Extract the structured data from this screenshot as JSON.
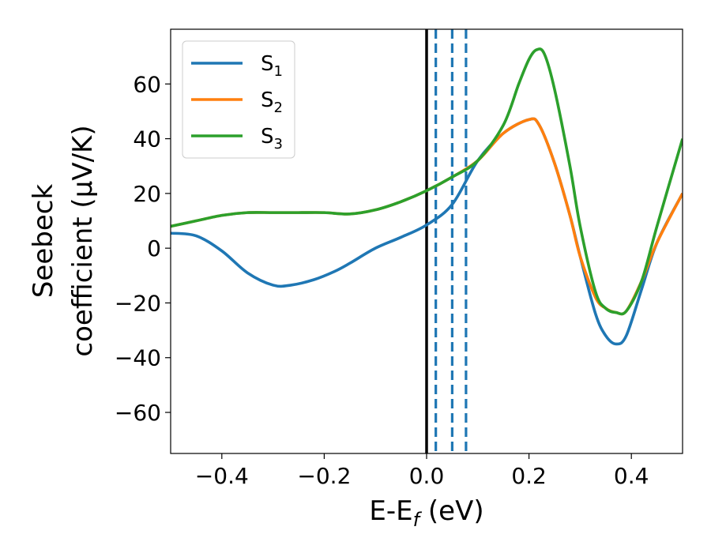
{
  "chart_data": {
    "type": "line",
    "xlabel": {
      "main": "E-E",
      "sub": "f",
      "tail": " (eV)"
    },
    "ylabel": {
      "line1": "Seebeck",
      "line2": "coefficient  (μV/K)"
    },
    "xlim": [
      -0.5,
      0.5
    ],
    "ylim": [
      -75,
      80
    ],
    "xticks": [
      -0.4,
      -0.2,
      0.0,
      0.2,
      0.4
    ],
    "xtick_labels": [
      "−0.4",
      "−0.2",
      "0.0",
      "0.2",
      "0.4"
    ],
    "yticks": [
      -60,
      -40,
      -20,
      0,
      20,
      40,
      60
    ],
    "ytick_labels": [
      "−60",
      "−40",
      "−20",
      "0",
      "20",
      "40",
      "60"
    ],
    "legend_position": "top-left",
    "vlines": [
      {
        "x": 0.0,
        "style": "solid",
        "color": "#000000"
      },
      {
        "x": 0.018,
        "style": "dashed",
        "color": "#1f77b4"
      },
      {
        "x": 0.05,
        "style": "dashed",
        "color": "#1f77b4"
      },
      {
        "x": 0.077,
        "style": "dashed",
        "color": "#1f77b4"
      }
    ],
    "series": [
      {
        "name": "S",
        "sub": "1",
        "color": "#1f77b4",
        "x": [
          -0.5,
          -0.45,
          -0.4,
          -0.35,
          -0.3,
          -0.265,
          -0.22,
          -0.18,
          -0.15,
          -0.1,
          -0.05,
          0.0,
          0.05,
          0.1,
          0.15,
          0.2,
          0.22,
          0.25,
          0.28,
          0.3,
          0.33,
          0.35,
          0.37,
          0.39,
          0.42,
          0.45,
          0.5
        ],
        "values": [
          5.5,
          4.5,
          -1,
          -9,
          -13.5,
          -13.5,
          -11.5,
          -8.5,
          -5.5,
          0,
          4,
          8.5,
          16,
          32,
          42,
          47,
          45,
          31,
          12,
          -3,
          -24,
          -32,
          -35,
          -32,
          -15,
          2,
          20
        ]
      },
      {
        "name": "S",
        "sub": "2",
        "color": "#ff7f0e",
        "x": [
          -0.5,
          -0.45,
          -0.4,
          -0.35,
          -0.3,
          -0.25,
          -0.2,
          -0.15,
          -0.1,
          -0.05,
          0.0,
          0.05,
          0.1,
          0.15,
          0.2,
          0.22,
          0.25,
          0.28,
          0.3,
          0.33,
          0.35,
          0.37,
          0.39,
          0.42,
          0.45,
          0.5
        ],
        "values": [
          8,
          10,
          12,
          13,
          13,
          13,
          13,
          12.5,
          14,
          17,
          21,
          26,
          32,
          42,
          47,
          45,
          31,
          12,
          -3,
          -18,
          -22,
          -23.5,
          -23,
          -12,
          2,
          20
        ]
      },
      {
        "name": "S",
        "sub": "3",
        "color": "#2ca02c",
        "x": [
          -0.5,
          -0.45,
          -0.4,
          -0.35,
          -0.3,
          -0.25,
          -0.2,
          -0.15,
          -0.1,
          -0.05,
          0.0,
          0.05,
          0.1,
          0.15,
          0.18,
          0.2,
          0.215,
          0.23,
          0.25,
          0.28,
          0.3,
          0.33,
          0.35,
          0.37,
          0.39,
          0.42,
          0.45,
          0.5
        ],
        "values": [
          8,
          10,
          12,
          13,
          13,
          13,
          13,
          12.5,
          14,
          17,
          21,
          26,
          32,
          45,
          60,
          69,
          72.5,
          71,
          58,
          30,
          8,
          -16,
          -22,
          -23.5,
          -23,
          -12,
          8,
          40
        ]
      }
    ]
  }
}
